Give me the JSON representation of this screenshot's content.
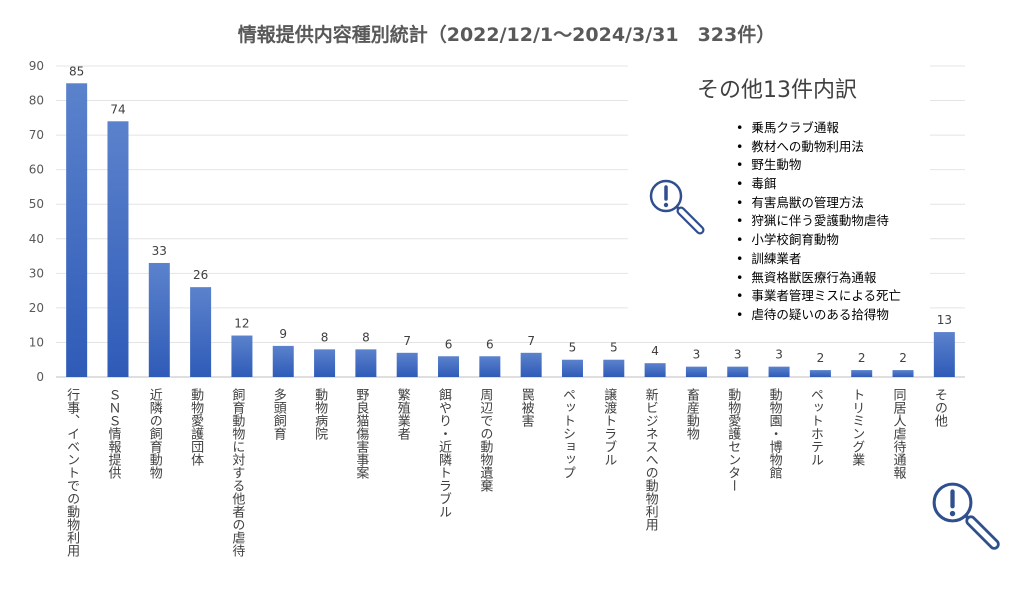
{
  "chart_data": {
    "type": "bar",
    "title": "情報提供内容種別統計（2022/12/1〜2024/3/31　323件）",
    "categories": [
      "行事、イベントでの動物利用",
      "ＳＮＳ情報提供",
      "近隣の飼育動物",
      "動物愛護団体",
      "飼育動物に対する他者の虐待",
      "多頭飼育",
      "動物病院",
      "野良猫傷害事案",
      "繁殖業者",
      "餌やり・近隣トラブル",
      "周辺での動物遺棄",
      "罠被害",
      "ペットショップ",
      "譲渡トラブル",
      "新ビジネスへの動物利用",
      "畜産動物",
      "動物愛護センター",
      "動物園・博物館",
      "ペットホテル",
      "トリミング業",
      "同居人虐待通報",
      "その他"
    ],
    "values": [
      85,
      74,
      33,
      26,
      12,
      9,
      8,
      8,
      7,
      6,
      6,
      7,
      5,
      5,
      4,
      3,
      3,
      3,
      2,
      2,
      2,
      13
    ],
    "ylim": [
      0,
      90
    ],
    "yticks": [
      0,
      10,
      20,
      30,
      40,
      50,
      60,
      70,
      80,
      90
    ],
    "grid": true,
    "bar_color": "#4472c4",
    "xlabel": "",
    "ylabel": ""
  },
  "breakdown": {
    "title": "その他13件内訳",
    "items": [
      "乗馬クラブ通報",
      "教材への動物利用法",
      "野生動物",
      "毒餌",
      "有害鳥獣の管理方法",
      "狩猟に伴う愛護動物虐待",
      "小学校飼育動物",
      "訓練業者",
      "無資格獣医療行為通報",
      "事業者管理ミスによる死亡",
      "虐待の疑いのある拾得物"
    ]
  },
  "icons": {
    "magnifier": "magnifier-exclamation-icon",
    "icon_color": "#2f4f8f"
  }
}
